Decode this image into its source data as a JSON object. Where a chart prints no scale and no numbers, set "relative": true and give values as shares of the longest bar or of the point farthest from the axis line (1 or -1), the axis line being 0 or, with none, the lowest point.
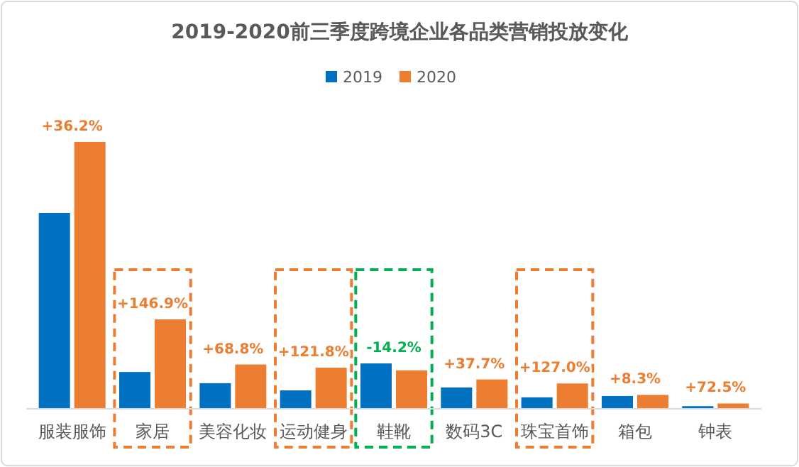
{
  "chart_data": {
    "type": "bar",
    "title": "2019-2020前三季度跨境企业各品类营销投放变化",
    "relative": true,
    "legend": "top",
    "categories": [
      "服装服饰",
      "家居",
      "美容化妆",
      "运动健身",
      "鞋靴",
      "数码3C",
      "珠宝首饰",
      "箱包",
      "钟表"
    ],
    "series": [
      {
        "name": "2019",
        "color": "#0070c0",
        "values": [
          0.734,
          0.138,
          0.096,
          0.069,
          0.17,
          0.08,
          0.043,
          0.048,
          0.01
        ]
      },
      {
        "name": "2020",
        "color": "#ed7d31",
        "values": [
          1,
          0.335,
          0.166,
          0.154,
          0.144,
          0.11,
          0.095,
          0.052,
          0.02
        ]
      }
    ],
    "annotations": [
      "+36.2%",
      "+146.9%",
      "+68.8%",
      "+121.8%",
      "-14.2%",
      "+37.7%",
      "+127.0%",
      "+8.3%",
      "+72.5%"
    ]
  }
}
